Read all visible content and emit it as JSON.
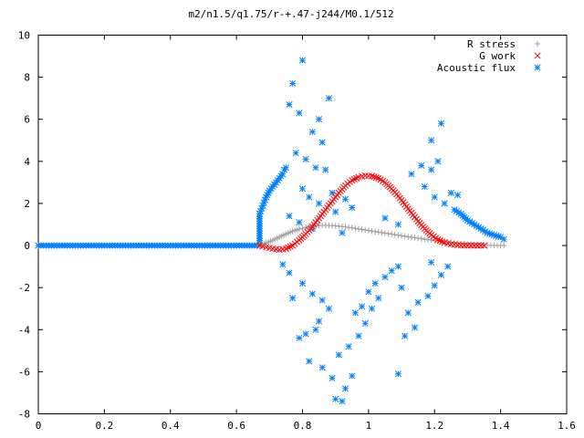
{
  "chart_data": {
    "type": "scatter",
    "title": "m2/n1.5/q1.75/r-+.47-j244/M0.1/512",
    "xlabel": "",
    "ylabel": "",
    "xlim": [
      0,
      1.6
    ],
    "ylim": [
      -8,
      10
    ],
    "x_ticks": [
      "0",
      "0.2",
      "0.4",
      "0.6",
      "0.8",
      "1",
      "1.2",
      "1.4",
      "1.6"
    ],
    "y_ticks": [
      "-8",
      "-6",
      "-4",
      "-2",
      "0",
      "2",
      "4",
      "6",
      "8",
      "10"
    ],
    "legend_position": "top-right",
    "grid": false,
    "series": [
      {
        "name": "R stress",
        "marker": "plus",
        "color": "#a0a0a0",
        "points": [
          [
            0.67,
            0.0
          ],
          [
            0.69,
            0.12
          ],
          [
            0.71,
            0.25
          ],
          [
            0.73,
            0.4
          ],
          [
            0.75,
            0.55
          ],
          [
            0.77,
            0.68
          ],
          [
            0.79,
            0.78
          ],
          [
            0.81,
            0.86
          ],
          [
            0.83,
            0.92
          ],
          [
            0.85,
            0.95
          ],
          [
            0.87,
            0.96
          ],
          [
            0.89,
            0.95
          ],
          [
            0.91,
            0.92
          ],
          [
            0.93,
            0.88
          ],
          [
            0.95,
            0.84
          ],
          [
            0.97,
            0.79
          ],
          [
            0.99,
            0.74
          ],
          [
            1.01,
            0.69
          ],
          [
            1.03,
            0.64
          ],
          [
            1.05,
            0.59
          ],
          [
            1.07,
            0.54
          ],
          [
            1.09,
            0.49
          ],
          [
            1.11,
            0.44
          ],
          [
            1.13,
            0.39
          ],
          [
            1.15,
            0.35
          ],
          [
            1.17,
            0.3
          ],
          [
            1.19,
            0.26
          ],
          [
            1.21,
            0.22
          ],
          [
            1.23,
            0.18
          ],
          [
            1.25,
            0.14
          ],
          [
            1.27,
            0.1
          ],
          [
            1.29,
            0.07
          ],
          [
            1.31,
            0.05
          ],
          [
            1.33,
            0.03
          ],
          [
            1.35,
            0.02
          ],
          [
            1.37,
            0.01
          ],
          [
            1.39,
            0.0
          ],
          [
            1.41,
            0.0
          ]
        ]
      },
      {
        "name": "G work",
        "marker": "cross",
        "color": "#ff0000",
        "points": [
          [
            0.67,
            0.0
          ],
          [
            0.69,
            -0.08
          ],
          [
            0.71,
            -0.15
          ],
          [
            0.73,
            -0.2
          ],
          [
            0.75,
            -0.15
          ],
          [
            0.77,
            0.0
          ],
          [
            0.79,
            0.25
          ],
          [
            0.81,
            0.55
          ],
          [
            0.83,
            0.9
          ],
          [
            0.85,
            1.3
          ],
          [
            0.87,
            1.7
          ],
          [
            0.89,
            2.1
          ],
          [
            0.91,
            2.5
          ],
          [
            0.93,
            2.85
          ],
          [
            0.95,
            3.1
          ],
          [
            0.97,
            3.25
          ],
          [
            0.99,
            3.32
          ],
          [
            1.01,
            3.3
          ],
          [
            1.03,
            3.2
          ],
          [
            1.05,
            3.0
          ],
          [
            1.07,
            2.7
          ],
          [
            1.09,
            2.35
          ],
          [
            1.11,
            1.95
          ],
          [
            1.13,
            1.55
          ],
          [
            1.15,
            1.15
          ],
          [
            1.17,
            0.8
          ],
          [
            1.19,
            0.5
          ],
          [
            1.21,
            0.28
          ],
          [
            1.23,
            0.14
          ],
          [
            1.25,
            0.06
          ],
          [
            1.27,
            0.02
          ],
          [
            1.29,
            0.0
          ],
          [
            1.31,
            0.0
          ],
          [
            1.33,
            0.0
          ],
          [
            1.35,
            0.0
          ]
        ]
      },
      {
        "name": "Acoustic flux",
        "marker": "star",
        "color": "#0080ff",
        "points": [
          [
            0.0,
            0.0
          ],
          [
            0.04,
            0.0
          ],
          [
            0.08,
            0.0
          ],
          [
            0.12,
            0.0
          ],
          [
            0.16,
            0.0
          ],
          [
            0.2,
            0.0
          ],
          [
            0.24,
            0.0
          ],
          [
            0.28,
            0.0
          ],
          [
            0.32,
            0.0
          ],
          [
            0.36,
            0.0
          ],
          [
            0.4,
            0.0
          ],
          [
            0.44,
            0.0
          ],
          [
            0.48,
            0.0
          ],
          [
            0.52,
            0.0
          ],
          [
            0.56,
            0.0
          ],
          [
            0.6,
            0.0
          ],
          [
            0.64,
            0.0
          ],
          [
            0.67,
            0.0
          ],
          [
            0.67,
            1.5
          ],
          [
            0.68,
            1.9
          ],
          [
            0.69,
            2.3
          ],
          [
            0.7,
            2.6
          ],
          [
            0.71,
            2.8
          ],
          [
            0.72,
            3.0
          ],
          [
            0.73,
            3.2
          ],
          [
            0.74,
            3.4
          ],
          [
            0.745,
            3.6
          ],
          [
            0.75,
            3.7
          ],
          [
            0.76,
            6.7
          ],
          [
            0.77,
            7.7
          ],
          [
            0.8,
            8.8
          ],
          [
            0.79,
            6.3
          ],
          [
            0.85,
            6.0
          ],
          [
            0.88,
            7.0
          ],
          [
            0.83,
            5.4
          ],
          [
            0.86,
            4.9
          ],
          [
            0.78,
            4.4
          ],
          [
            0.81,
            4.1
          ],
          [
            0.84,
            3.7
          ],
          [
            0.87,
            3.6
          ],
          [
            0.8,
            2.7
          ],
          [
            0.82,
            2.3
          ],
          [
            0.85,
            2.0
          ],
          [
            0.89,
            2.5
          ],
          [
            0.93,
            2.2
          ],
          [
            0.95,
            1.8
          ],
          [
            0.9,
            1.6
          ],
          [
            0.76,
            1.4
          ],
          [
            0.79,
            1.1
          ],
          [
            0.83,
            0.8
          ],
          [
            0.92,
            0.6
          ],
          [
            1.05,
            1.3
          ],
          [
            1.09,
            1.0
          ],
          [
            1.13,
            3.4
          ],
          [
            1.16,
            3.8
          ],
          [
            1.19,
            3.6
          ],
          [
            1.21,
            4.0
          ],
          [
            1.22,
            5.8
          ],
          [
            1.19,
            5.0
          ],
          [
            1.17,
            2.8
          ],
          [
            1.2,
            2.3
          ],
          [
            1.23,
            2.0
          ],
          [
            1.25,
            2.5
          ],
          [
            1.27,
            2.4
          ],
          [
            1.26,
            1.7
          ],
          [
            1.28,
            1.5
          ],
          [
            1.3,
            1.2
          ],
          [
            1.32,
            1.0
          ],
          [
            1.34,
            0.8
          ],
          [
            1.36,
            0.6
          ],
          [
            1.38,
            0.5
          ],
          [
            1.4,
            0.4
          ],
          [
            1.41,
            0.3
          ],
          [
            0.74,
            -0.9
          ],
          [
            0.76,
            -1.3
          ],
          [
            0.77,
            -2.5
          ],
          [
            0.8,
            -1.8
          ],
          [
            0.83,
            -2.3
          ],
          [
            0.86,
            -2.6
          ],
          [
            0.88,
            -3.0
          ],
          [
            0.79,
            -4.4
          ],
          [
            0.81,
            -4.2
          ],
          [
            0.84,
            -4.0
          ],
          [
            0.85,
            -3.6
          ],
          [
            0.82,
            -5.5
          ],
          [
            0.86,
            -5.8
          ],
          [
            0.89,
            -6.3
          ],
          [
            0.9,
            -7.3
          ],
          [
            0.92,
            -7.4
          ],
          [
            0.93,
            -6.8
          ],
          [
            0.95,
            -6.2
          ],
          [
            0.91,
            -5.2
          ],
          [
            0.94,
            -4.8
          ],
          [
            0.97,
            -4.3
          ],
          [
            0.99,
            -3.7
          ],
          [
            1.01,
            -3.0
          ],
          [
            1.03,
            -2.5
          ],
          [
            0.96,
            -3.2
          ],
          [
            0.98,
            -2.9
          ],
          [
            1.0,
            -2.2
          ],
          [
            1.02,
            -1.8
          ],
          [
            1.05,
            -1.5
          ],
          [
            1.07,
            -1.2
          ],
          [
            1.09,
            -1.0
          ],
          [
            1.1,
            -2.0
          ],
          [
            1.12,
            -3.2
          ],
          [
            1.14,
            -3.9
          ],
          [
            1.11,
            -4.3
          ],
          [
            1.09,
            -6.1
          ],
          [
            1.15,
            -2.7
          ],
          [
            1.18,
            -2.4
          ],
          [
            1.2,
            -1.9
          ],
          [
            1.22,
            -1.4
          ],
          [
            1.24,
            -1.0
          ],
          [
            1.19,
            -0.8
          ]
        ]
      }
    ]
  }
}
